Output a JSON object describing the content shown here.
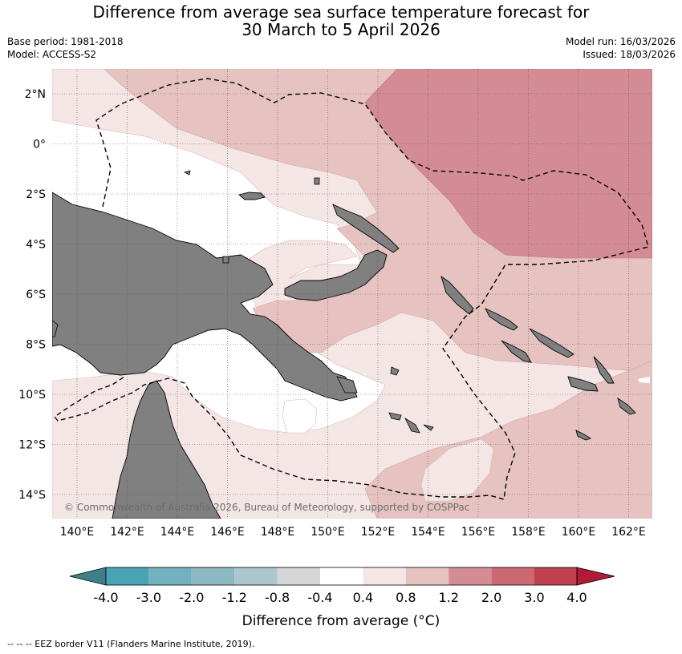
{
  "title": {
    "line1": "Difference from average sea surface temperature forecast for",
    "line2": "30 March to 5 April 2026"
  },
  "meta": {
    "base_period": "Base period: 1981-2018",
    "model": "Model: ACCESS-S2",
    "model_run": "Model run: 16/03/2026",
    "issued": "Issued: 18/03/2026"
  },
  "map": {
    "lon_labels": [
      "140°E",
      "142°E",
      "144°E",
      "146°E",
      "148°E",
      "150°E",
      "152°E",
      "154°E",
      "156°E",
      "158°E",
      "160°E",
      "162°E"
    ],
    "lat_labels": [
      "2°N",
      "0°",
      "2°S",
      "4°S",
      "6°S",
      "8°S",
      "10°S",
      "12°S",
      "14°S"
    ],
    "copyright": "© Commonwealth of Australia 2026, Bureau of Meteorology, supported by COSPPac",
    "colors": {
      "land": "#808080",
      "band_04_08": "#f4e6e5",
      "band_08_12": "#e6c3c0",
      "band_12_20": "#d48c94"
    }
  },
  "colorbar": {
    "tick_labels": [
      "-4.0",
      "-3.0",
      "-2.0",
      "-1.2",
      "-0.8",
      "-0.4",
      "0.4",
      "0.8",
      "1.2",
      "2.0",
      "3.0",
      "4.0"
    ],
    "colors": [
      "#3e7f8c",
      "#4aa3b4",
      "#72b1c0",
      "#8cb8c4",
      "#a9c7cc",
      "#d3d5d6",
      "#ffffff",
      "#f4e6e5",
      "#e6c3c0",
      "#d48c94",
      "#cc6872",
      "#c0404f",
      "#b21a36"
    ],
    "label": "Difference from average (°C)"
  },
  "footer": "--  --  -- EEZ border V11 (Flanders Marine Institute, 2019)."
}
